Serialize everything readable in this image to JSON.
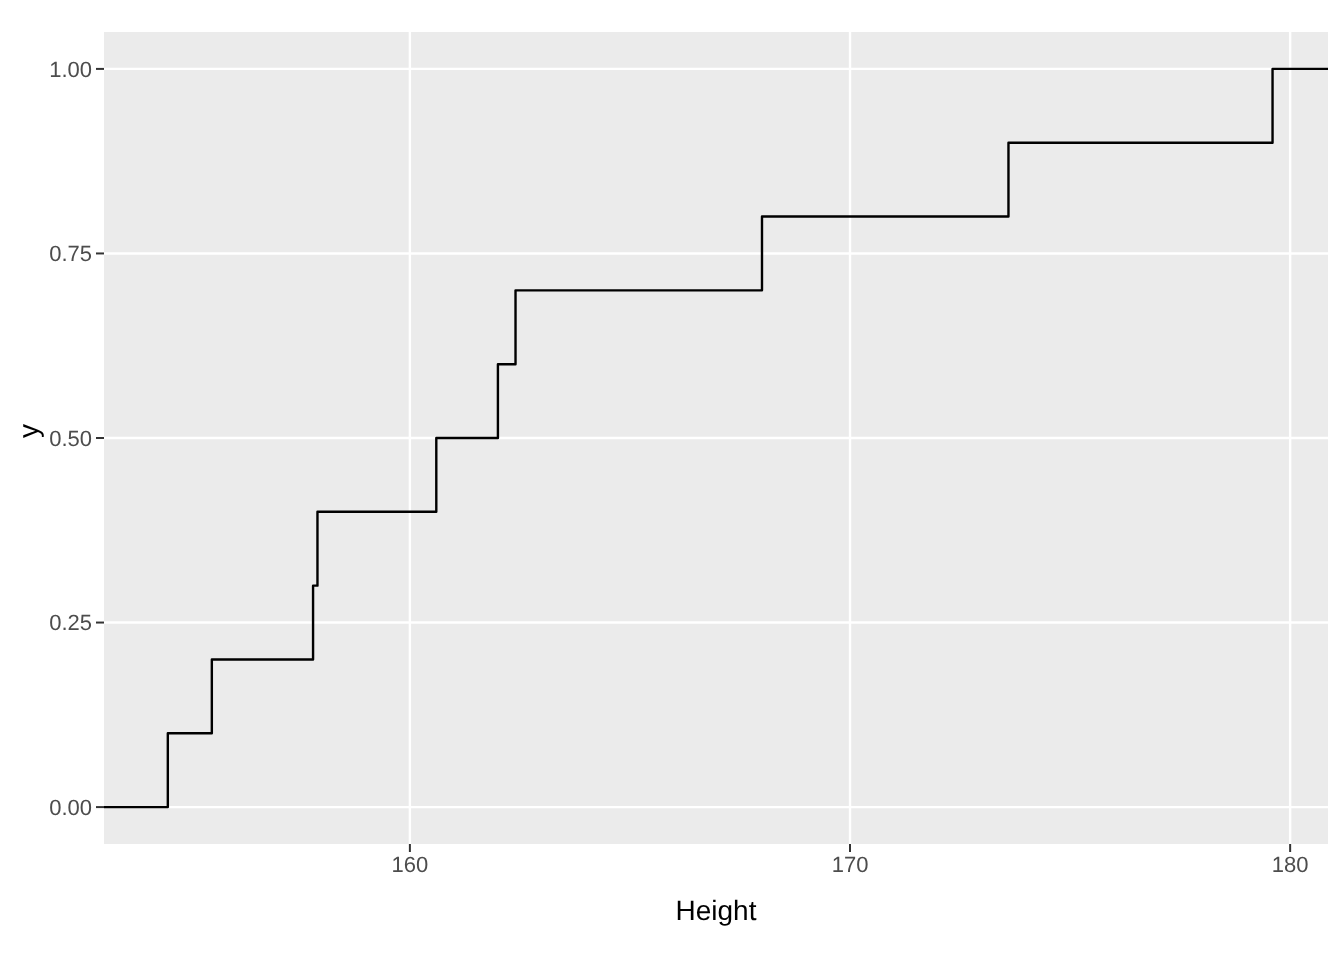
{
  "chart_data": {
    "type": "step",
    "xlabel": "Height",
    "ylabel": "y",
    "x": [
      153.05,
      154.5,
      155.5,
      157.8,
      157.9,
      160.6,
      162.0,
      162.4,
      168.0,
      173.6,
      179.6,
      180.86
    ],
    "series": [
      {
        "color": "#000000",
        "values": [
          0,
          0.1,
          0.2,
          0.3,
          0.4,
          0.5,
          0.6,
          0.7,
          0.8,
          0.9,
          1.0,
          1.0
        ]
      }
    ],
    "xlim": [
      153.05,
      180.86
    ],
    "xticks": [
      160,
      170,
      180
    ],
    "ylim": [
      -0.05,
      1.05
    ],
    "yticks": [
      {
        "value": 0,
        "label": "0.00"
      },
      {
        "value": 0.25,
        "label": "0.25"
      },
      {
        "value": 0.5,
        "label": "0.50"
      },
      {
        "value": 0.75,
        "label": "0.75"
      },
      {
        "value": 1,
        "label": "1.00"
      }
    ],
    "grid": true,
    "legend": false,
    "marker": "none",
    "line_style": "solid"
  }
}
